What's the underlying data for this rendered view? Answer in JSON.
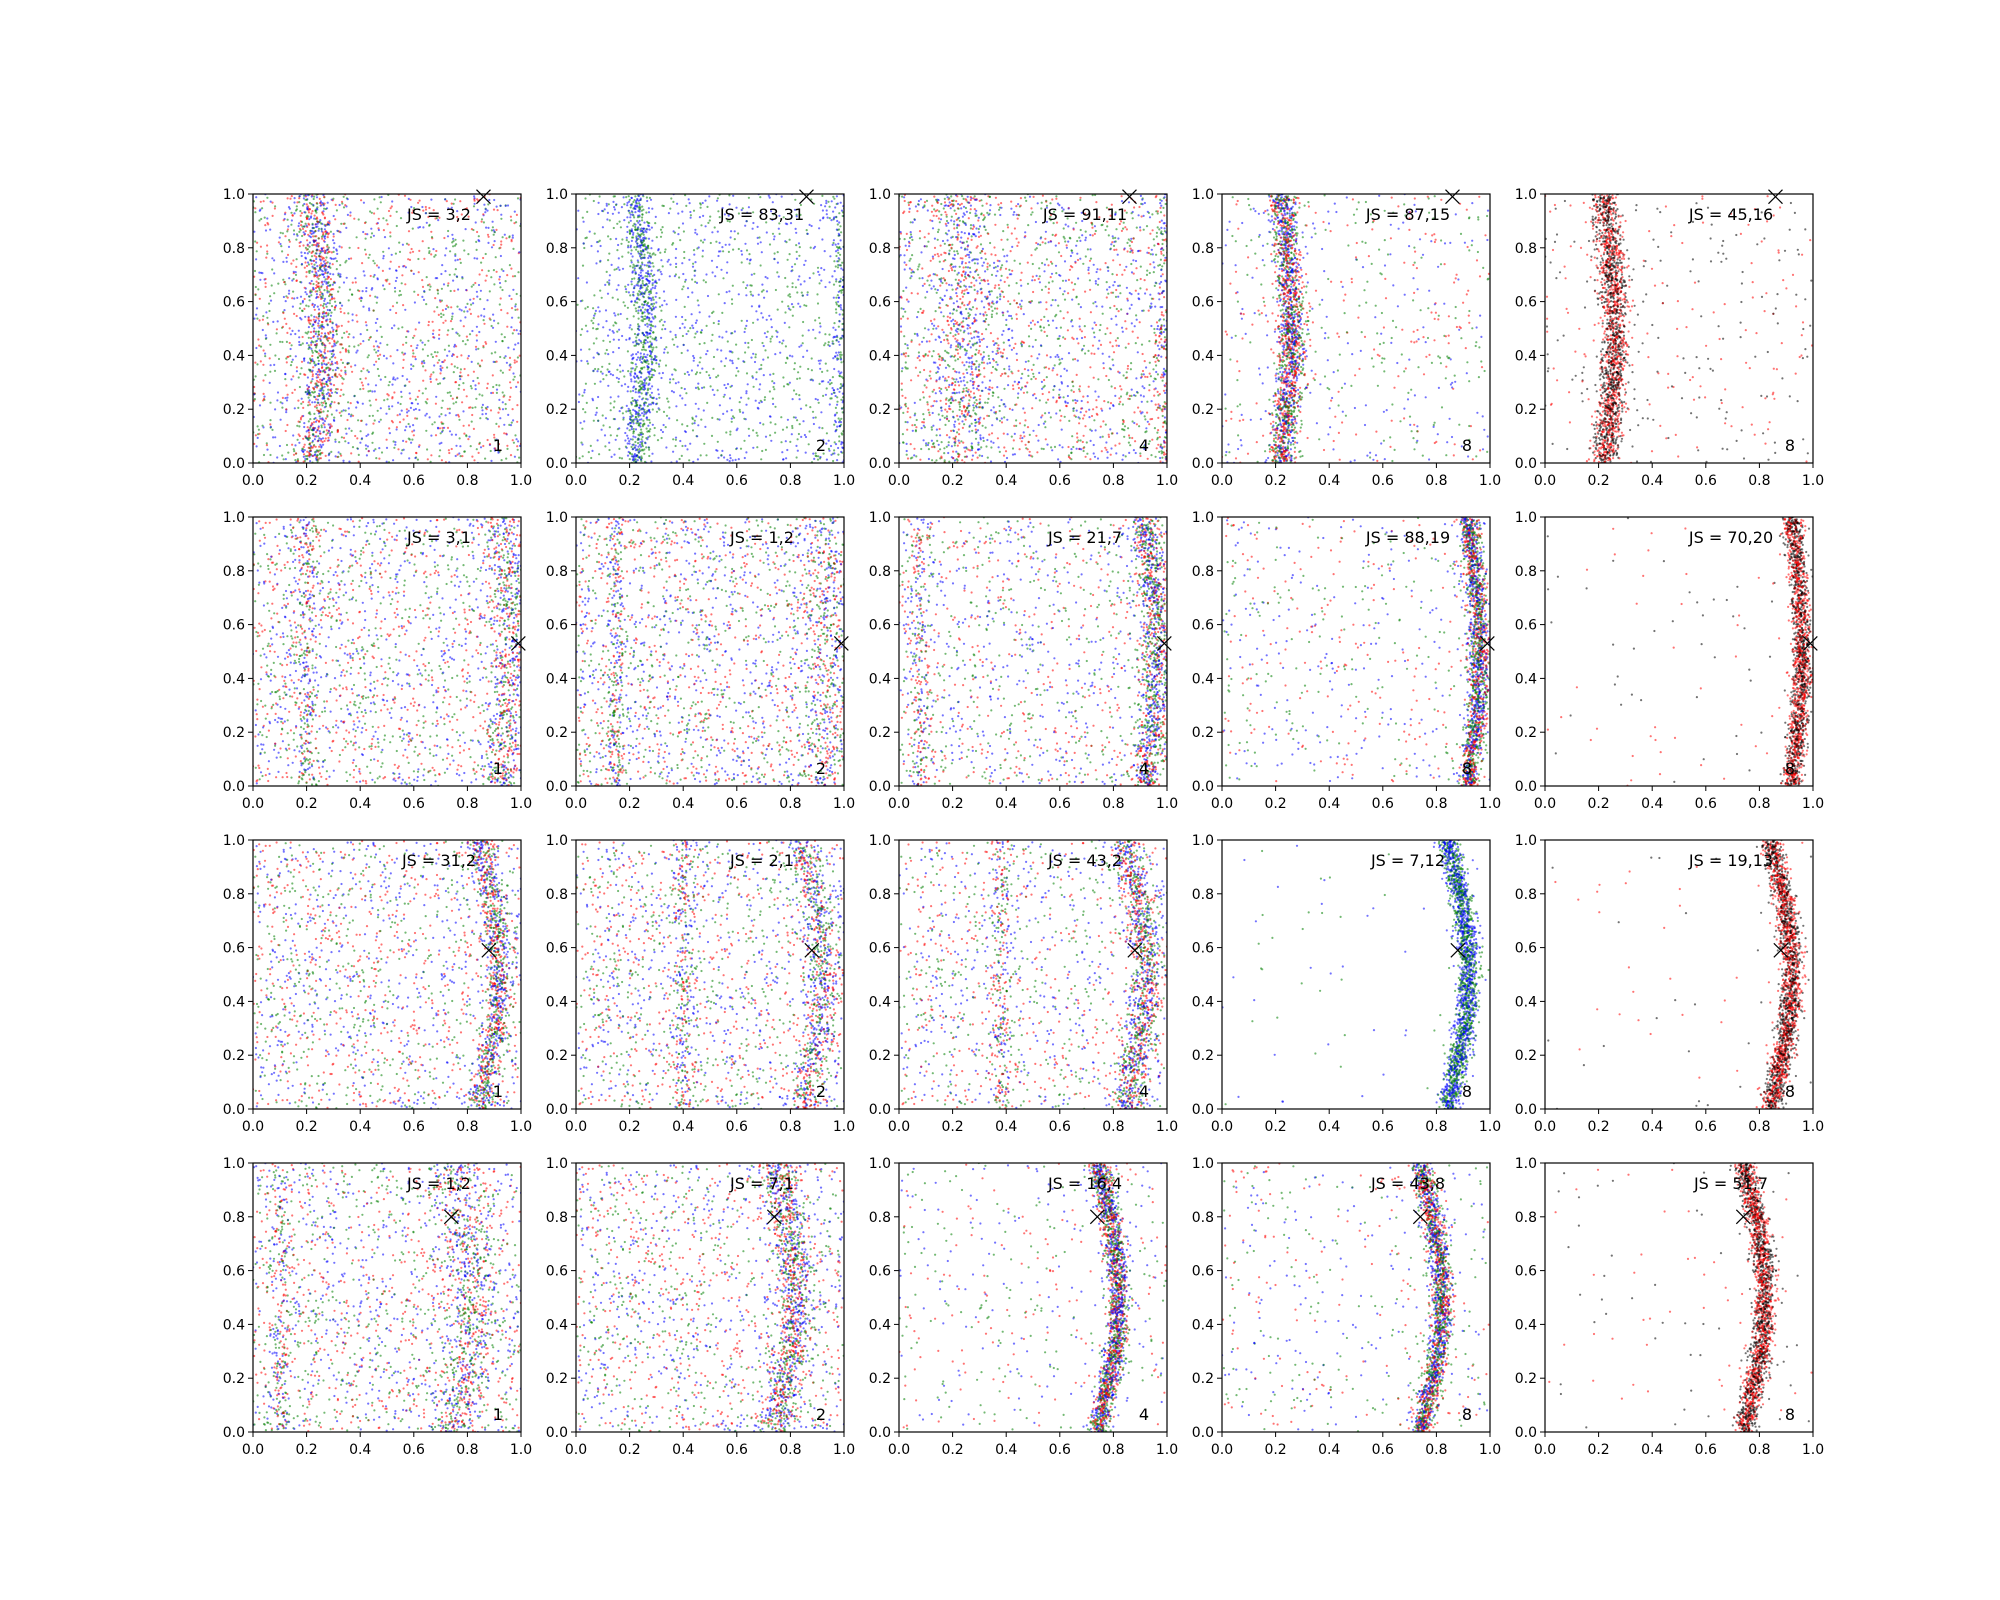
{
  "chart_data": {
    "type": "scatter",
    "layout": "grid",
    "rows": 4,
    "cols": 5,
    "xlim": [
      0.0,
      1.0
    ],
    "ylim": [
      0.0,
      1.0
    ],
    "xticks": [
      "0.0",
      "0.2",
      "0.4",
      "0.6",
      "0.8",
      "1.0"
    ],
    "yticks": [
      "0.0",
      "0.2",
      "0.4",
      "0.6",
      "0.8",
      "1.0"
    ],
    "grid": false,
    "colors": {
      "blue": "#0000ff",
      "green": "#008000",
      "red": "#ff0000",
      "black": "#000000"
    },
    "target_marker": "x",
    "rows_data": [
      {
        "target": [
          0.86,
          0.99
        ],
        "curve": {
          "base": 0.22,
          "amp": 0.04,
          "dir": 1
        },
        "panels": [
          {
            "js": "JS = 3,2",
            "n": "1",
            "band_frac": 0.35,
            "spread": 0.035,
            "colors": [
              "blue",
              "green",
              "red"
            ],
            "density": 1.0,
            "extra_band_x": null
          },
          {
            "js": "JS = 83,31",
            "n": "2",
            "band_frac": 0.35,
            "spread": 0.025,
            "colors": [
              "blue",
              "green"
            ],
            "density": 0.9,
            "extra_band_x": 0.99
          },
          {
            "js": "JS = 91,11",
            "n": "4",
            "band_frac": 0.25,
            "spread": 0.06,
            "colors": [
              "blue",
              "green",
              "red"
            ],
            "density": 1.0,
            "extra_band_x": 0.99
          },
          {
            "js": "JS = 87,15",
            "n": "8",
            "band_frac": 0.75,
            "spread": 0.025,
            "colors": [
              "blue",
              "green",
              "red"
            ],
            "density": 0.9,
            "extra_band_x": null
          },
          {
            "js": "JS = 45,16",
            "n": "8",
            "band_frac": 0.85,
            "spread": 0.025,
            "colors": [
              "black",
              "red"
            ],
            "density": 0.8,
            "extra_band_x": null
          }
        ]
      },
      {
        "target": [
          0.99,
          0.53
        ],
        "curve": {
          "base": 0.92,
          "amp": 0.04,
          "dir": 1
        },
        "panels": [
          {
            "js": "JS = 3,1",
            "n": "1",
            "band_frac": 0.25,
            "spread": 0.04,
            "colors": [
              "blue",
              "green",
              "red"
            ],
            "density": 1.0,
            "extra_band_x": 0.2
          },
          {
            "js": "JS = 1,2",
            "n": "2",
            "band_frac": 0.2,
            "spread": 0.05,
            "colors": [
              "blue",
              "green",
              "red"
            ],
            "density": 1.0,
            "extra_band_x": 0.15
          },
          {
            "js": "JS = 21,7",
            "n": "4",
            "band_frac": 0.45,
            "spread": 0.03,
            "colors": [
              "blue",
              "green",
              "red"
            ],
            "density": 1.0,
            "extra_band_x": 0.08
          },
          {
            "js": "JS = 88,19",
            "n": "8",
            "band_frac": 0.75,
            "spread": 0.02,
            "colors": [
              "blue",
              "green",
              "red"
            ],
            "density": 0.9,
            "extra_band_x": null
          },
          {
            "js": "JS = 70,20",
            "n": "8",
            "band_frac": 0.95,
            "spread": 0.018,
            "colors": [
              "black",
              "red"
            ],
            "density": 0.7,
            "extra_band_x": null
          }
        ]
      },
      {
        "target": [
          0.88,
          0.59
        ],
        "curve": {
          "base": 0.84,
          "amp": 0.08,
          "dir": 1
        },
        "panels": [
          {
            "js": "JS = 31,2",
            "n": "1",
            "band_frac": 0.4,
            "spread": 0.025,
            "colors": [
              "blue",
              "green",
              "red"
            ],
            "density": 1.0,
            "extra_band_x": null
          },
          {
            "js": "JS = 2,1",
            "n": "2",
            "band_frac": 0.3,
            "spread": 0.03,
            "colors": [
              "blue",
              "green",
              "red"
            ],
            "density": 1.0,
            "extra_band_x": 0.4
          },
          {
            "js": "JS = 43,2",
            "n": "4",
            "band_frac": 0.45,
            "spread": 0.03,
            "colors": [
              "blue",
              "green",
              "red"
            ],
            "density": 1.0,
            "extra_band_x": 0.38
          },
          {
            "js": "JS = 7,12",
            "n": "8",
            "band_frac": 0.97,
            "spread": 0.02,
            "colors": [
              "blue",
              "green"
            ],
            "density": 0.8,
            "extra_band_x": null
          },
          {
            "js": "JS = 19,13",
            "n": "8",
            "band_frac": 0.97,
            "spread": 0.02,
            "colors": [
              "black",
              "red"
            ],
            "density": 0.8,
            "extra_band_x": null
          }
        ]
      },
      {
        "target": [
          0.74,
          0.8
        ],
        "curve": {
          "base": 0.74,
          "amp": 0.08,
          "dir": 1
        },
        "panels": [
          {
            "js": "JS = 1,2",
            "n": "1",
            "band_frac": 0.3,
            "spread": 0.05,
            "colors": [
              "blue",
              "green",
              "red"
            ],
            "density": 1.0,
            "extra_band_x": 0.1
          },
          {
            "js": "JS = 7,1",
            "n": "2",
            "band_frac": 0.45,
            "spread": 0.035,
            "colors": [
              "blue",
              "green",
              "red"
            ],
            "density": 1.0,
            "extra_band_x": null
          },
          {
            "js": "JS = 16,4",
            "n": "4",
            "band_frac": 0.8,
            "spread": 0.02,
            "colors": [
              "blue",
              "green",
              "red"
            ],
            "density": 0.9,
            "extra_band_x": null
          },
          {
            "js": "JS = 43,8",
            "n": "8",
            "band_frac": 0.8,
            "spread": 0.02,
            "colors": [
              "blue",
              "green",
              "red"
            ],
            "density": 0.9,
            "extra_band_x": null
          },
          {
            "js": "JS = 51,7",
            "n": "8",
            "band_frac": 0.95,
            "spread": 0.02,
            "colors": [
              "black",
              "red"
            ],
            "density": 0.8,
            "extra_band_x": null
          }
        ]
      }
    ]
  }
}
